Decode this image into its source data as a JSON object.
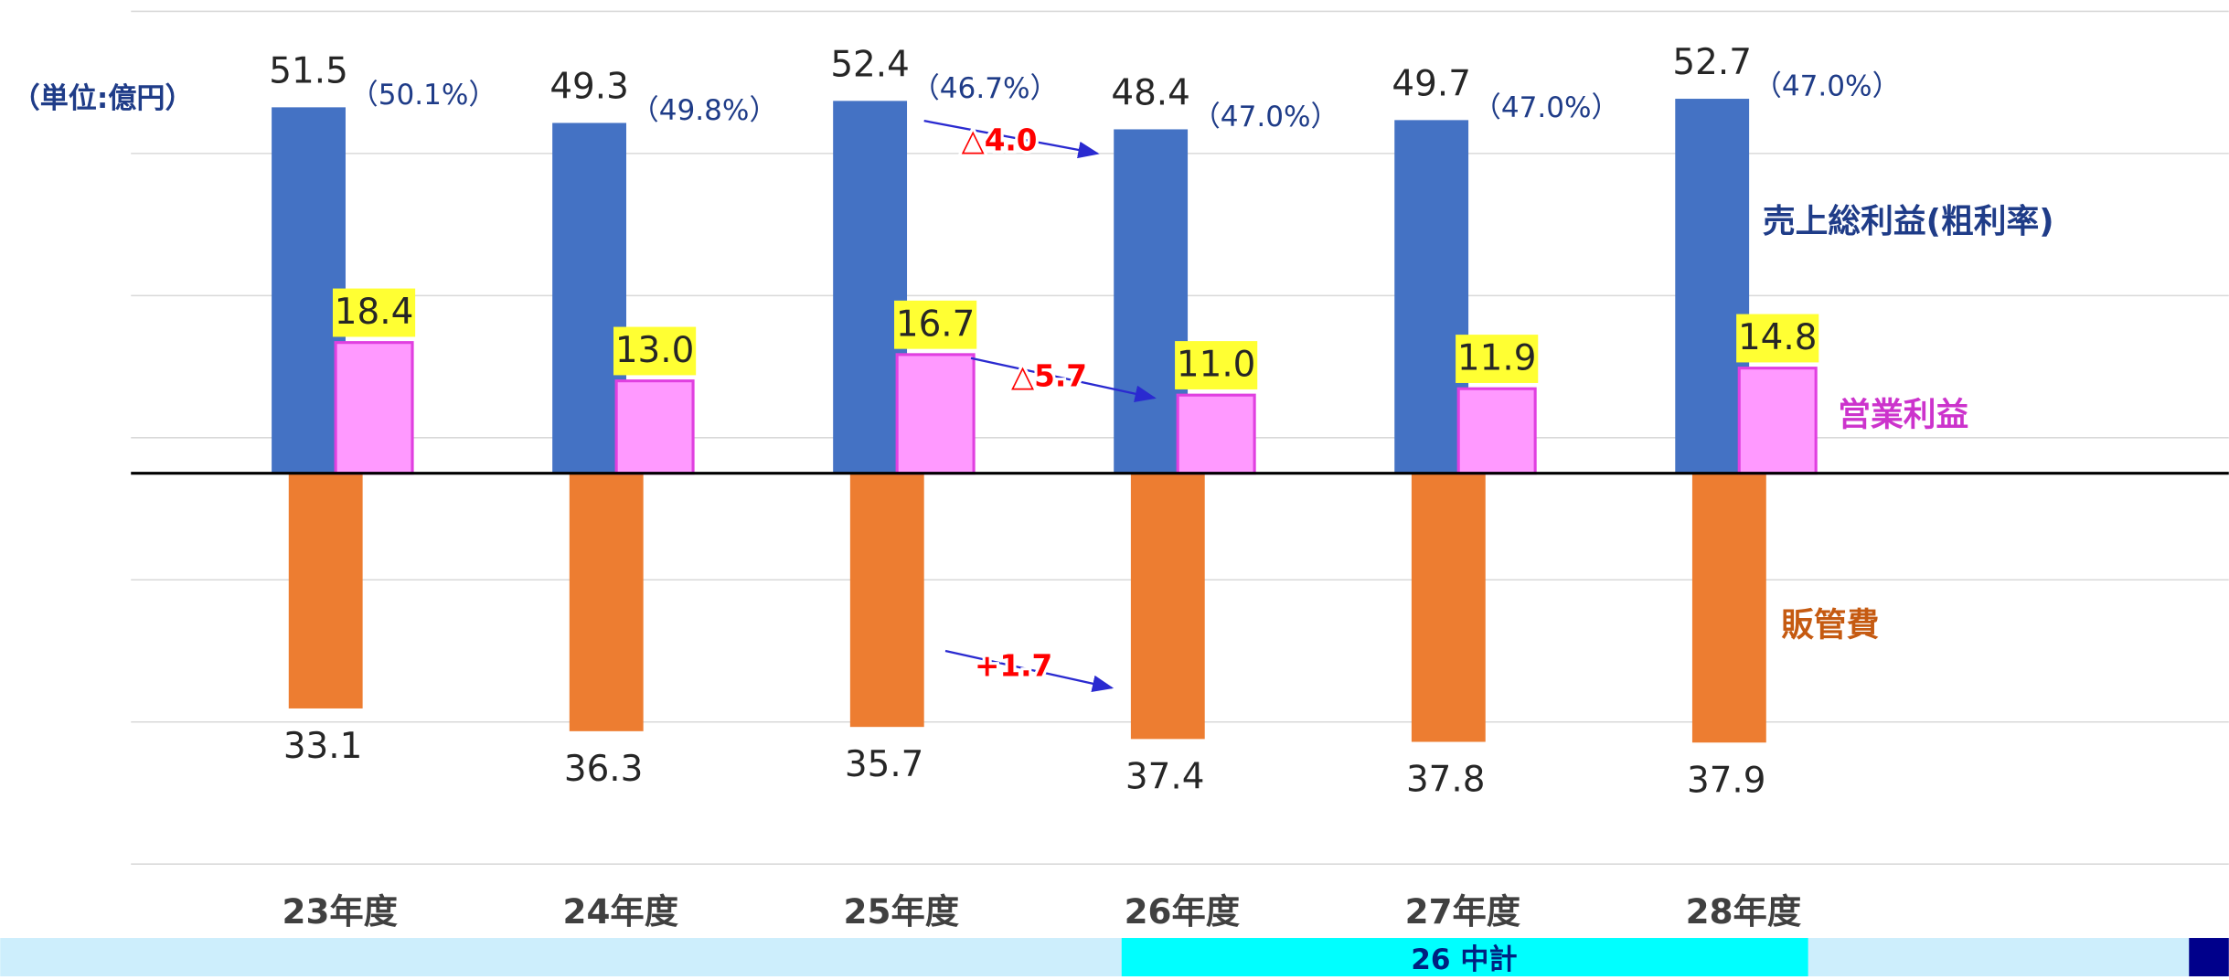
{
  "chart_data": {
    "type": "bar",
    "unit_label": "（単位:億円）",
    "categories": [
      "23年度",
      "24年度",
      "25年度",
      "26年度",
      "27年度",
      "28年度"
    ],
    "series": [
      {
        "name": "売上総利益(粗利率)",
        "color": "#4472c4",
        "values": [
          51.5,
          49.3,
          52.4,
          48.4,
          49.7,
          52.7
        ],
        "value_labels": [
          "51.5",
          "49.3",
          "52.4",
          "48.4",
          "49.7",
          "52.7"
        ],
        "rate_labels": [
          "（50.1%）",
          "（49.8%）",
          "（46.7%）",
          "（47.0%）",
          "（47.0%）",
          "（47.0%）"
        ]
      },
      {
        "name": "営業利益",
        "color": "#ff99ff",
        "values": [
          18.4,
          13.0,
          16.7,
          11.0,
          11.9,
          14.8
        ],
        "value_labels": [
          "18.4",
          "13.0",
          "16.7",
          "11.0",
          "11.9",
          "14.8"
        ]
      },
      {
        "name": "販管費",
        "color": "#ed7d31",
        "values": [
          33.1,
          36.3,
          35.7,
          37.4,
          37.8,
          37.9
        ],
        "value_labels": [
          "33.1",
          "36.3",
          "35.7",
          "37.4",
          "37.8",
          "37.9"
        ]
      }
    ],
    "annotations": [
      "△4.0",
      "△5.7",
      "+1.7"
    ],
    "plan_label": "26 中計",
    "grid": true
  }
}
